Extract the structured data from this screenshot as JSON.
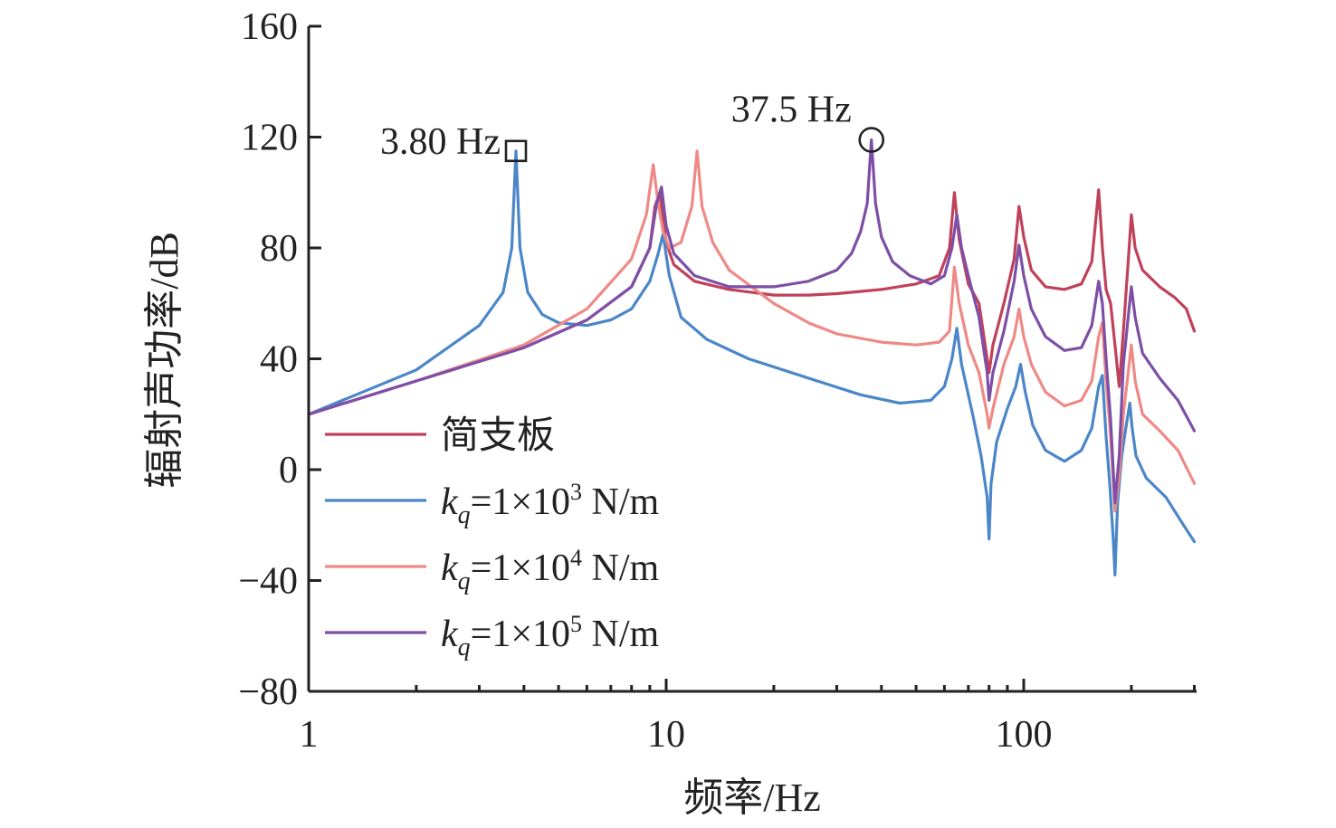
{
  "chart_data": {
    "type": "line",
    "title": "",
    "xlabel": "频率/Hz",
    "ylabel": "辐射声功率/dB",
    "x_scale": "log",
    "xlim": [
      1,
      300
    ],
    "ylim": [
      -80,
      160
    ],
    "x_ticks": [
      1,
      10,
      100
    ],
    "x_tick_labels": [
      "1",
      "10",
      "100"
    ],
    "y_ticks": [
      -80,
      -40,
      0,
      40,
      80,
      120,
      160
    ],
    "y_tick_labels": [
      "−80",
      "−40",
      "0",
      "40",
      "80",
      "120",
      "160"
    ],
    "grid": false,
    "legend_position": "left-middle",
    "legend": [
      {
        "prefix": "",
        "sub": "",
        "eq": "",
        "exp": "",
        "unit": "",
        "text": "简支板",
        "color": "#c0415a"
      },
      {
        "prefix": "k",
        "sub": "q",
        "eq": "=1×10",
        "exp": "3",
        "unit": " N/m",
        "text": "",
        "color": "#4a86c8"
      },
      {
        "prefix": "k",
        "sub": "q",
        "eq": "=1×10",
        "exp": "4",
        "unit": " N/m",
        "text": "",
        "color": "#ee8a86"
      },
      {
        "prefix": "k",
        "sub": "q",
        "eq": "=1×10",
        "exp": "5",
        "unit": " N/m",
        "text": "",
        "color": "#7d4fa6"
      }
    ],
    "annotations": [
      {
        "text": "3.80 Hz",
        "x": 3.8,
        "y": 115,
        "marker": "square"
      },
      {
        "text": "37.5 Hz",
        "x": 37.5,
        "y": 119,
        "marker": "circle"
      }
    ],
    "series": [
      {
        "name": "简支板",
        "color": "#c0415a",
        "x": [
          1,
          2,
          4,
          6,
          8,
          9,
          9.3,
          9.6,
          9.8,
          10,
          10.5,
          12,
          15,
          20,
          25,
          30,
          40,
          50,
          58,
          62,
          64,
          66,
          70,
          75,
          79,
          80,
          82,
          88,
          94,
          97,
          100,
          105,
          115,
          130,
          145,
          155,
          162,
          166,
          170,
          175,
          180,
          185,
          190,
          196,
          200,
          205,
          215,
          240,
          265,
          285,
          300
        ],
        "y": [
          20,
          32,
          44,
          54,
          66,
          80,
          95,
          100,
          91,
          82,
          74,
          68,
          65,
          63,
          63,
          63.5,
          65,
          67,
          70,
          80,
          100,
          83,
          67,
          60,
          40,
          35,
          45,
          60,
          76,
          95,
          84,
          72,
          66,
          65,
          67,
          75,
          101,
          80,
          65,
          60,
          45,
          30,
          50,
          75,
          92,
          80,
          72,
          66,
          62,
          58,
          50
        ]
      },
      {
        "name": "kq=1×10^3 N/m",
        "color": "#4a86c8",
        "x": [
          1,
          2,
          3,
          3.5,
          3.7,
          3.8,
          3.9,
          4.1,
          4.5,
          5,
          6,
          7,
          8,
          9,
          9.5,
          9.8,
          10.2,
          11,
          13,
          17,
          25,
          35,
          45,
          55,
          60,
          63,
          65,
          67,
          72,
          76,
          79,
          80,
          81,
          84,
          90,
          95,
          98,
          101,
          106,
          115,
          130,
          145,
          155,
          162,
          166,
          170,
          174,
          178,
          180,
          183,
          188,
          193,
          198,
          201,
          206,
          220,
          250,
          280,
          300
        ],
        "y": [
          20,
          36,
          52,
          64,
          80,
          115,
          80,
          64,
          56,
          53,
          52,
          54,
          58,
          68,
          78,
          85,
          70,
          55,
          47,
          40,
          33,
          27,
          24,
          25,
          30,
          40,
          51,
          38,
          20,
          5,
          -10,
          -25,
          -5,
          10,
          22,
          30,
          38,
          28,
          16,
          7,
          3,
          7,
          15,
          30,
          34,
          12,
          -5,
          -25,
          -38,
          -12,
          5,
          15,
          24,
          15,
          5,
          -3,
          -10,
          -20,
          -26
        ]
      },
      {
        "name": "kq=1×10^4 N/m",
        "color": "#ee8a86",
        "x": [
          1,
          2,
          4,
          6,
          8,
          8.8,
          9.2,
          9.5,
          9.8,
          10.2,
          11,
          11.8,
          12.2,
          12.6,
          13.5,
          15,
          20,
          25,
          30,
          40,
          50,
          58,
          62,
          64,
          66,
          70,
          75,
          79,
          80,
          82,
          88,
          94,
          97,
          100,
          105,
          115,
          130,
          145,
          155,
          162,
          166,
          170,
          175,
          180,
          185,
          190,
          196,
          200,
          205,
          215,
          240,
          270,
          300
        ],
        "y": [
          20,
          32,
          45,
          58,
          76,
          92,
          110,
          96,
          86,
          80,
          82,
          95,
          115,
          95,
          82,
          72,
          60,
          53,
          49,
          46,
          45,
          46,
          50,
          73,
          60,
          45,
          35,
          20,
          15,
          22,
          38,
          48,
          58,
          48,
          38,
          28,
          23,
          25,
          32,
          48,
          53,
          32,
          12,
          -15,
          -2,
          20,
          35,
          45,
          32,
          20,
          14,
          7,
          -5
        ]
      },
      {
        "name": "kq=1×10^5 N/m",
        "color": "#7d4fa6",
        "x": [
          1,
          2,
          4,
          6,
          8,
          9,
          9.4,
          9.7,
          10,
          10.5,
          12,
          15,
          20,
          25,
          30,
          33,
          35,
          36.5,
          37.5,
          38.5,
          40,
          43,
          48,
          55,
          60,
          63,
          65,
          67,
          70,
          75,
          79,
          80,
          82,
          88,
          94,
          97,
          100,
          105,
          115,
          130,
          145,
          155,
          162,
          166,
          170,
          175,
          180,
          185,
          190,
          196,
          200,
          205,
          215,
          240,
          270,
          300
        ],
        "y": [
          20,
          32,
          44,
          54,
          66,
          80,
          96,
          102,
          88,
          78,
          70,
          66,
          66,
          68,
          72,
          78,
          86,
          96,
          119,
          96,
          84,
          75,
          70,
          67,
          70,
          80,
          92,
          80,
          70,
          55,
          35,
          25,
          35,
          50,
          68,
          81,
          70,
          58,
          48,
          43,
          44,
          52,
          68,
          60,
          40,
          18,
          -12,
          5,
          38,
          55,
          66,
          55,
          42,
          33,
          25,
          14
        ]
      }
    ]
  }
}
